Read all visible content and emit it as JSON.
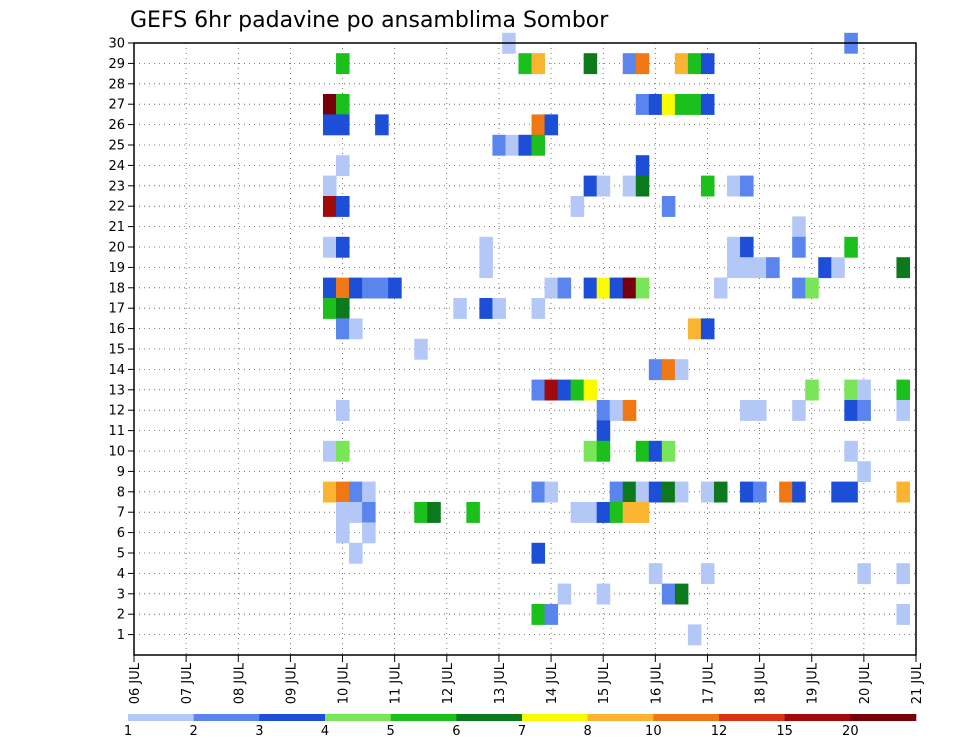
{
  "chart_data": {
    "type": "heatmap",
    "title": "GEFS 6hr padavine po ansamblima Sombor",
    "xlabel": "",
    "ylabel": "",
    "x_ticks": [
      "06 JUL",
      "07 JUL",
      "08 JUL",
      "09 JUL",
      "10 JUL",
      "11 JUL",
      "12 JUL",
      "13 JUL",
      "14 JUL",
      "15 JUL",
      "16 JUL",
      "17 JUL",
      "18 JUL",
      "19 JUL",
      "20 JUL",
      "21 JUL"
    ],
    "y_ticks": [
      "1",
      "2",
      "3",
      "4",
      "5",
      "6",
      "7",
      "8",
      "9",
      "10",
      "11",
      "12",
      "13",
      "14",
      "15",
      "16",
      "17",
      "18",
      "19",
      "20",
      "21",
      "22",
      "23",
      "24",
      "25",
      "26",
      "27",
      "28",
      "29",
      "30"
    ],
    "xlim_days": [
      6,
      21
    ],
    "ylim_member": [
      0,
      30
    ],
    "time_step_hours": 6,
    "grid": true,
    "colorbar": {
      "labels": [
        "1",
        "2",
        "3",
        "4",
        "5",
        "6",
        "7",
        "8",
        "10",
        "12",
        "15",
        "20"
      ],
      "colors": [
        "#b4c8f8",
        "#5a84ee",
        "#1c4ed8",
        "#78e658",
        "#1cc01c",
        "#0c7a1c",
        "#fafa00",
        "#fab432",
        "#f07814",
        "#dc3214",
        "#a00a0a",
        "#78000a"
      ]
    },
    "cells": [
      [
        30,
        13,
        0.75,
        1
      ],
      [
        30,
        19,
        3,
        2
      ],
      [
        29,
        10,
        0,
        5
      ],
      [
        29,
        13,
        2,
        5
      ],
      [
        29,
        13,
        3,
        8
      ],
      [
        29,
        14,
        3,
        6
      ],
      [
        29,
        15,
        2,
        2
      ],
      [
        29,
        15,
        3,
        10
      ],
      [
        29,
        16,
        2,
        8
      ],
      [
        29,
        16,
        3,
        5
      ],
      [
        29,
        17,
        0,
        3
      ],
      [
        27,
        9,
        3,
        20
      ],
      [
        27,
        10,
        0,
        5
      ],
      [
        27,
        15,
        3,
        2
      ],
      [
        27,
        16,
        0,
        3
      ],
      [
        27,
        16,
        1,
        7
      ],
      [
        27,
        16,
        2,
        5
      ],
      [
        27,
        16,
        3,
        5
      ],
      [
        27,
        17,
        0,
        3
      ],
      [
        26,
        9,
        3,
        3
      ],
      [
        26,
        10,
        0,
        3
      ],
      [
        26,
        10,
        3,
        3
      ],
      [
        26,
        13,
        3,
        10
      ],
      [
        26,
        14,
        0,
        3
      ],
      [
        25,
        13,
        0,
        2
      ],
      [
        25,
        13,
        1,
        1
      ],
      [
        25,
        13,
        2,
        3
      ],
      [
        25,
        13,
        3,
        5
      ],
      [
        24,
        10,
        0,
        1
      ],
      [
        24,
        15,
        3,
        3
      ],
      [
        23,
        9,
        3,
        1
      ],
      [
        23,
        14,
        3,
        3
      ],
      [
        23,
        15,
        0,
        1
      ],
      [
        23,
        15,
        2,
        1
      ],
      [
        23,
        15,
        3,
        6
      ],
      [
        23,
        17,
        0,
        5
      ],
      [
        23,
        17,
        2,
        1
      ],
      [
        23,
        17,
        3,
        2
      ],
      [
        22,
        9,
        3,
        15
      ],
      [
        22,
        10,
        0,
        3
      ],
      [
        22,
        14,
        2,
        1
      ],
      [
        22,
        16,
        1,
        2
      ],
      [
        21,
        18,
        3,
        1
      ],
      [
        20,
        9,
        3,
        1
      ],
      [
        20,
        10,
        0,
        3
      ],
      [
        20,
        12,
        3,
        1
      ],
      [
        20,
        17,
        2,
        1
      ],
      [
        20,
        17,
        3,
        3
      ],
      [
        20,
        18,
        3,
        2
      ],
      [
        20,
        19,
        3,
        5
      ],
      [
        19,
        12,
        3,
        1
      ],
      [
        19,
        17,
        2,
        1
      ],
      [
        19,
        17,
        3,
        1
      ],
      [
        19,
        18,
        0,
        1
      ],
      [
        19,
        18,
        1,
        2
      ],
      [
        19,
        19,
        1,
        3
      ],
      [
        19,
        19,
        2,
        1
      ],
      [
        19,
        20,
        3,
        6
      ],
      [
        18,
        9,
        3,
        3
      ],
      [
        18,
        10,
        0,
        10
      ],
      [
        18,
        10,
        1,
        3
      ],
      [
        18,
        10,
        2,
        2
      ],
      [
        18,
        10,
        3,
        2
      ],
      [
        18,
        11,
        0,
        3
      ],
      [
        18,
        14,
        0,
        1
      ],
      [
        18,
        14,
        1,
        2
      ],
      [
        18,
        14,
        3,
        3
      ],
      [
        18,
        15,
        0,
        7
      ],
      [
        18,
        15,
        1,
        3
      ],
      [
        18,
        15,
        2,
        20
      ],
      [
        18,
        15,
        3,
        4
      ],
      [
        18,
        17,
        1,
        1
      ],
      [
        18,
        18,
        3,
        2
      ],
      [
        18,
        19,
        0,
        4
      ],
      [
        17,
        9,
        3,
        5
      ],
      [
        17,
        10,
        0,
        6
      ],
      [
        17,
        12,
        1,
        1
      ],
      [
        17,
        12,
        3,
        3
      ],
      [
        17,
        13,
        0,
        1
      ],
      [
        17,
        13,
        3,
        1
      ],
      [
        16,
        10,
        0,
        2
      ],
      [
        16,
        10,
        1,
        1
      ],
      [
        16,
        16,
        3,
        8
      ],
      [
        16,
        17,
        0,
        3
      ],
      [
        15,
        11,
        2,
        1
      ],
      [
        14,
        16,
        0,
        2
      ],
      [
        14,
        16,
        1,
        10
      ],
      [
        14,
        16,
        2,
        1
      ],
      [
        13,
        13,
        3,
        2
      ],
      [
        13,
        14,
        0,
        15
      ],
      [
        13,
        14,
        1,
        3
      ],
      [
        13,
        14,
        2,
        5
      ],
      [
        13,
        14,
        3,
        7
      ],
      [
        13,
        19,
        0,
        4
      ],
      [
        13,
        19,
        3,
        4
      ],
      [
        13,
        20,
        0,
        1
      ],
      [
        13,
        20,
        3,
        5
      ],
      [
        12,
        10,
        0,
        1
      ],
      [
        12,
        15,
        0,
        2
      ],
      [
        12,
        15,
        1,
        1
      ],
      [
        12,
        15,
        2,
        10
      ],
      [
        12,
        17,
        3,
        1
      ],
      [
        12,
        18,
        0,
        1
      ],
      [
        12,
        18,
        3,
        1
      ],
      [
        12,
        19,
        3,
        3
      ],
      [
        12,
        20,
        0,
        2
      ],
      [
        12,
        20,
        3,
        1
      ],
      [
        11,
        15,
        0,
        3
      ],
      [
        10,
        9,
        3,
        1
      ],
      [
        10,
        10,
        0,
        4
      ],
      [
        10,
        14,
        3,
        4
      ],
      [
        10,
        15,
        0,
        5
      ],
      [
        10,
        15,
        3,
        5
      ],
      [
        10,
        16,
        0,
        3
      ],
      [
        10,
        16,
        1,
        4
      ],
      [
        10,
        19,
        3,
        1
      ],
      [
        9,
        20,
        0,
        1
      ],
      [
        8,
        9,
        3,
        8
      ],
      [
        8,
        10,
        0,
        10
      ],
      [
        8,
        10,
        1,
        2
      ],
      [
        8,
        10,
        2,
        1
      ],
      [
        8,
        13,
        3,
        2
      ],
      [
        8,
        14,
        0,
        1
      ],
      [
        8,
        15,
        1,
        2
      ],
      [
        8,
        15,
        2,
        6
      ],
      [
        8,
        15,
        3,
        1
      ],
      [
        8,
        16,
        0,
        3
      ],
      [
        8,
        16,
        1,
        6
      ],
      [
        8,
        16,
        2,
        1
      ],
      [
        8,
        17,
        0,
        1
      ],
      [
        8,
        17,
        1,
        6
      ],
      [
        8,
        17,
        3,
        3
      ],
      [
        8,
        18,
        0,
        2
      ],
      [
        8,
        18,
        2,
        10
      ],
      [
        8,
        18,
        3,
        3
      ],
      [
        8,
        19,
        2,
        3
      ],
      [
        8,
        19,
        3,
        3
      ],
      [
        8,
        20,
        3,
        8
      ],
      [
        7,
        10,
        0,
        1
      ],
      [
        7,
        10,
        1,
        1
      ],
      [
        7,
        10,
        2,
        2
      ],
      [
        7,
        11,
        2,
        5
      ],
      [
        7,
        11,
        3,
        6
      ],
      [
        7,
        12,
        2,
        5
      ],
      [
        7,
        14,
        2,
        1
      ],
      [
        7,
        14,
        3,
        1
      ],
      [
        7,
        15,
        0,
        3
      ],
      [
        7,
        15,
        1,
        5
      ],
      [
        7,
        15,
        2,
        8
      ],
      [
        7,
        15,
        3,
        8
      ],
      [
        6,
        10,
        0,
        1
      ],
      [
        6,
        10,
        2,
        1
      ],
      [
        5,
        10,
        1,
        1
      ],
      [
        5,
        13,
        3,
        3
      ],
      [
        4,
        16,
        0,
        1
      ],
      [
        4,
        17,
        0,
        1
      ],
      [
        4,
        20,
        0,
        1
      ],
      [
        4,
        20,
        3,
        1
      ],
      [
        3,
        14,
        1,
        1
      ],
      [
        3,
        15,
        0,
        1
      ],
      [
        3,
        16,
        1,
        2
      ],
      [
        3,
        16,
        2,
        6
      ],
      [
        2,
        13,
        3,
        5
      ],
      [
        2,
        14,
        0,
        2
      ],
      [
        2,
        20,
        3,
        1
      ],
      [
        1,
        16,
        3,
        1
      ]
    ]
  }
}
